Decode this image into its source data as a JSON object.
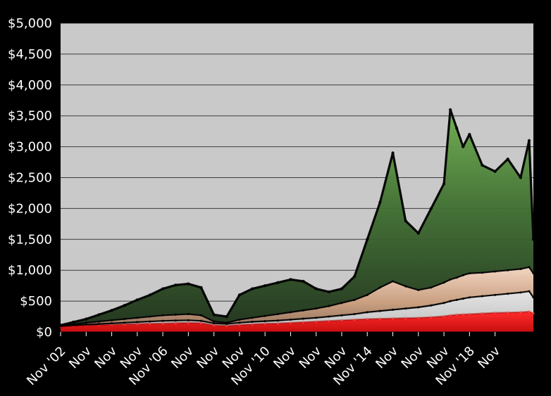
{
  "chart_data": {
    "type": "area",
    "title": "",
    "xlabel": "",
    "ylabel": "",
    "ylim": [
      0,
      5000
    ],
    "y_ticks": [
      0,
      500,
      1000,
      1500,
      2000,
      2500,
      3000,
      3500,
      4000,
      4500,
      5000
    ],
    "y_tick_labels": [
      "$0",
      "$500",
      "$1,000",
      "$1,500",
      "$2,000",
      "$2,500",
      "$3,000",
      "$3,500",
      "$4,000",
      "$4,500",
      "$5,000"
    ],
    "x_range": [
      "2002-11",
      "2021-05"
    ],
    "x_ticks": [
      "2002-11",
      "2003-11",
      "2004-11",
      "2005-11",
      "2006-11",
      "2007-11",
      "2008-11",
      "2009-11",
      "2010-11",
      "2011-11",
      "2012-11",
      "2013-11",
      "2014-11",
      "2015-11",
      "2016-11",
      "2017-11",
      "2018-11",
      "2019-11"
    ],
    "x_tick_labels": [
      "Nov '02",
      "Nov",
      "Nov",
      "Nov",
      "Nov '06",
      "Nov",
      "Nov",
      "Nov",
      "Nov '10",
      "Nov",
      "Nov",
      "Nov",
      "Nov '14",
      "Nov",
      "Nov",
      "Nov",
      "Nov '18",
      "Nov"
    ],
    "grid": true,
    "legend": "none",
    "background_color": "#000000",
    "plot_background_color": "#c9c9c9",
    "x": [
      "2002-11",
      "2003-05",
      "2003-11",
      "2004-05",
      "2004-11",
      "2005-05",
      "2005-11",
      "2006-05",
      "2006-11",
      "2007-05",
      "2007-11",
      "2008-05",
      "2008-11",
      "2009-05",
      "2009-11",
      "2010-05",
      "2010-11",
      "2011-05",
      "2011-11",
      "2012-05",
      "2012-11",
      "2013-05",
      "2013-11",
      "2014-05",
      "2014-11",
      "2015-05",
      "2015-11",
      "2016-05",
      "2016-11",
      "2017-05",
      "2017-11",
      "2018-02",
      "2018-05",
      "2018-08",
      "2018-11",
      "2019-05",
      "2019-11",
      "2020-05",
      "2020-11",
      "2021-03",
      "2021-05"
    ],
    "series": [
      {
        "color": "#e31b1b",
        "values": [
          90,
          100,
          110,
          115,
          120,
          125,
          130,
          135,
          140,
          145,
          150,
          145,
          110,
          100,
          115,
          125,
          135,
          140,
          150,
          160,
          170,
          180,
          190,
          200,
          210,
          215,
          220,
          225,
          230,
          240,
          255,
          270,
          280,
          285,
          290,
          300,
          310,
          315,
          320,
          330,
          300
        ]
      },
      {
        "color": "#d8d8d8",
        "values": [
          95,
          110,
          120,
          130,
          140,
          150,
          160,
          170,
          180,
          185,
          190,
          180,
          140,
          130,
          150,
          165,
          175,
          185,
          200,
          215,
          230,
          250,
          270,
          290,
          320,
          340,
          360,
          380,
          400,
          430,
          470,
          500,
          520,
          540,
          560,
          580,
          600,
          620,
          640,
          660,
          560
        ]
      },
      {
        "color": "#d9b59b",
        "values": [
          100,
          125,
          150,
          170,
          190,
          210,
          230,
          250,
          270,
          280,
          290,
          270,
          170,
          150,
          200,
          230,
          260,
          290,
          320,
          350,
          380,
          420,
          470,
          520,
          600,
          720,
          820,
          740,
          680,
          720,
          800,
          850,
          880,
          920,
          950,
          960,
          980,
          1000,
          1020,
          1050,
          950
        ]
      },
      {
        "color": "#4c8a3a",
        "values": [
          110,
          160,
          210,
          280,
          350,
          430,
          520,
          600,
          700,
          760,
          780,
          720,
          280,
          250,
          600,
          700,
          750,
          800,
          850,
          820,
          700,
          650,
          700,
          900,
          1500,
          2100,
          2900,
          1800,
          1600,
          2000,
          2400,
          3600,
          3300,
          3000,
          3200,
          2700,
          2600,
          2800,
          2500,
          3100,
          1500
        ]
      }
    ]
  }
}
